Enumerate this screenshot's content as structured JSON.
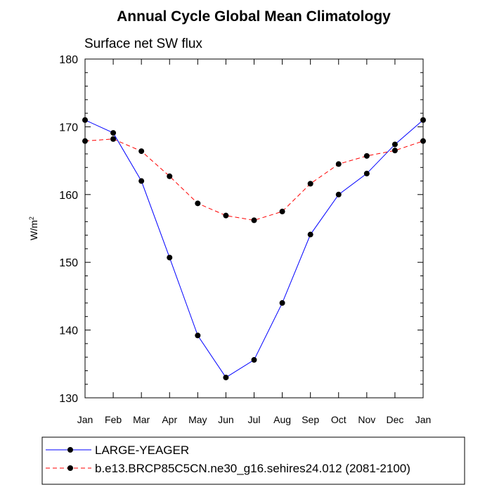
{
  "chart_data": {
    "type": "line",
    "title": "Annual Cycle Global Mean Climatology",
    "subtitle": "Surface net SW flux",
    "ylabel": "W/m",
    "ylabel_sup": "2",
    "xlabel": "",
    "ylim": [
      130,
      180
    ],
    "yticks": [
      130,
      140,
      150,
      160,
      170,
      180
    ],
    "categories": [
      "Jan",
      "Feb",
      "Mar",
      "Apr",
      "May",
      "Jun",
      "Jul",
      "Aug",
      "Sep",
      "Oct",
      "Nov",
      "Dec",
      "Jan"
    ],
    "grid": false,
    "legend_position": "bottom",
    "series": [
      {
        "name": "LARGE-YEAGER",
        "color": "#0000ff",
        "dash": "solid",
        "values": [
          171.0,
          169.1,
          162.0,
          150.7,
          139.2,
          133.0,
          135.6,
          144.0,
          154.1,
          160.0,
          163.1,
          167.4,
          171.0
        ]
      },
      {
        "name": "b.e13.BRCP85C5CN.ne30_g16.sehires24.012 (2081-2100)",
        "color": "#ff0000",
        "dash": "dashed",
        "values": [
          167.9,
          168.2,
          166.4,
          162.7,
          158.7,
          156.9,
          156.2,
          157.5,
          161.6,
          164.5,
          165.7,
          166.5,
          167.9
        ]
      }
    ]
  }
}
